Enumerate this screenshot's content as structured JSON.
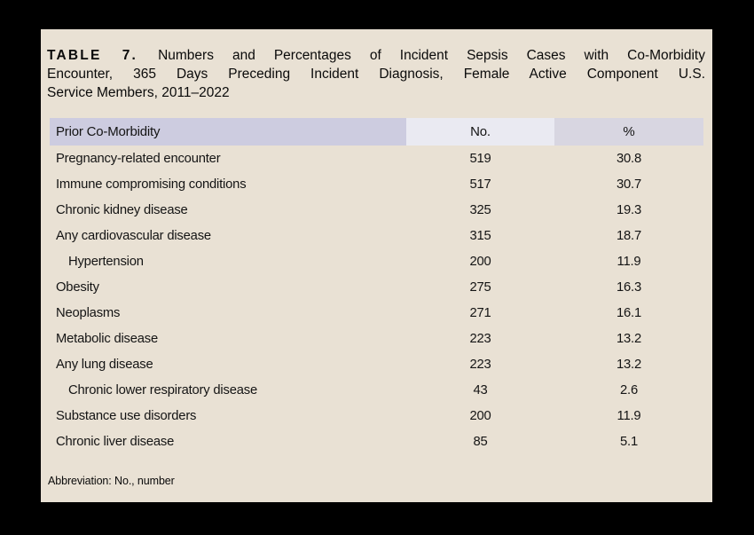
{
  "title": {
    "prefix": "TABLE 7.",
    "line1_rest": "Numbers and Percentages of Incident Sepsis Cases with Co-Morbidity",
    "line2": "Encounter, 365 Days Preceding Incident Diagnosis, Female Active Component U.S.",
    "line3": "Service Members, 2011–2022"
  },
  "table": {
    "columns": {
      "comorbidity": "Prior Co-Morbidity",
      "number": "No.",
      "percent": "%"
    },
    "rows": [
      {
        "label": "Pregnancy-related encounter",
        "no": "519",
        "pct": "30.8",
        "indent": false
      },
      {
        "label": "Immune compromising conditions",
        "no": "517",
        "pct": "30.7",
        "indent": false
      },
      {
        "label": "Chronic kidney disease",
        "no": "325",
        "pct": "19.3",
        "indent": false
      },
      {
        "label": "Any cardiovascular disease",
        "no": "315",
        "pct": "18.7",
        "indent": false
      },
      {
        "label": "Hypertension",
        "no": "200",
        "pct": "11.9",
        "indent": true
      },
      {
        "label": "Obesity",
        "no": "275",
        "pct": "16.3",
        "indent": false
      },
      {
        "label": "Neoplasms",
        "no": "271",
        "pct": "16.1",
        "indent": false
      },
      {
        "label": "Metabolic disease",
        "no": "223",
        "pct": "13.2",
        "indent": false
      },
      {
        "label": "Any lung disease",
        "no": "223",
        "pct": "13.2",
        "indent": false
      },
      {
        "label": "Chronic lower respiratory disease",
        "no": "43",
        "pct": "2.6",
        "indent": true
      },
      {
        "label": "Substance use disorders",
        "no": "200",
        "pct": "11.9",
        "indent": false
      },
      {
        "label": "Chronic liver disease",
        "no": "85",
        "pct": "5.1",
        "indent": false
      }
    ]
  },
  "footnote": "Abbreviation: No., number",
  "colors": {
    "page_background": "#000000",
    "card_background": "#e9e1d4",
    "header_comorbidity_bg": "#cdcce0",
    "header_number_bg": "#eaeaf2",
    "header_percent_bg": "#d8d6e1",
    "text": "#141414"
  }
}
